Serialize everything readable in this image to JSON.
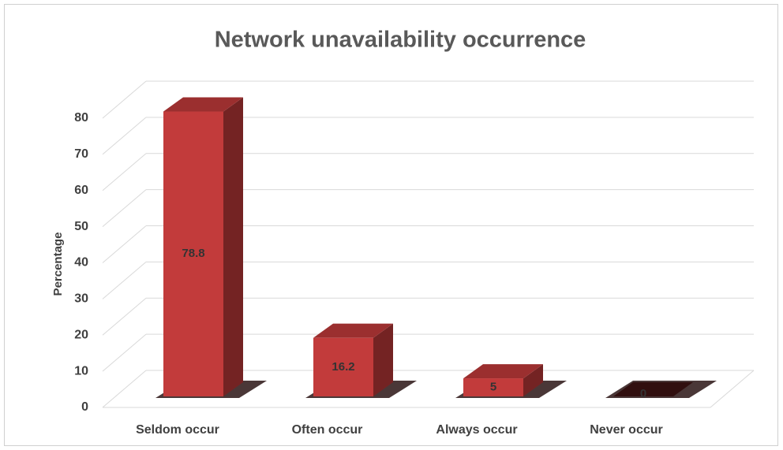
{
  "chart_data": {
    "type": "bar3d",
    "title": "Network unavailability occurrence",
    "ylabel": "Percentage",
    "categories": [
      "Seldom occur",
      "Often occur",
      "Always occur",
      "Never occur"
    ],
    "values": [
      78.8,
      16.2,
      5,
      0
    ],
    "color": "#c23b3b",
    "ylim": [
      0,
      80
    ],
    "yticks": [
      0,
      10,
      20,
      30,
      40,
      50,
      60,
      70,
      80
    ],
    "grid": true
  }
}
